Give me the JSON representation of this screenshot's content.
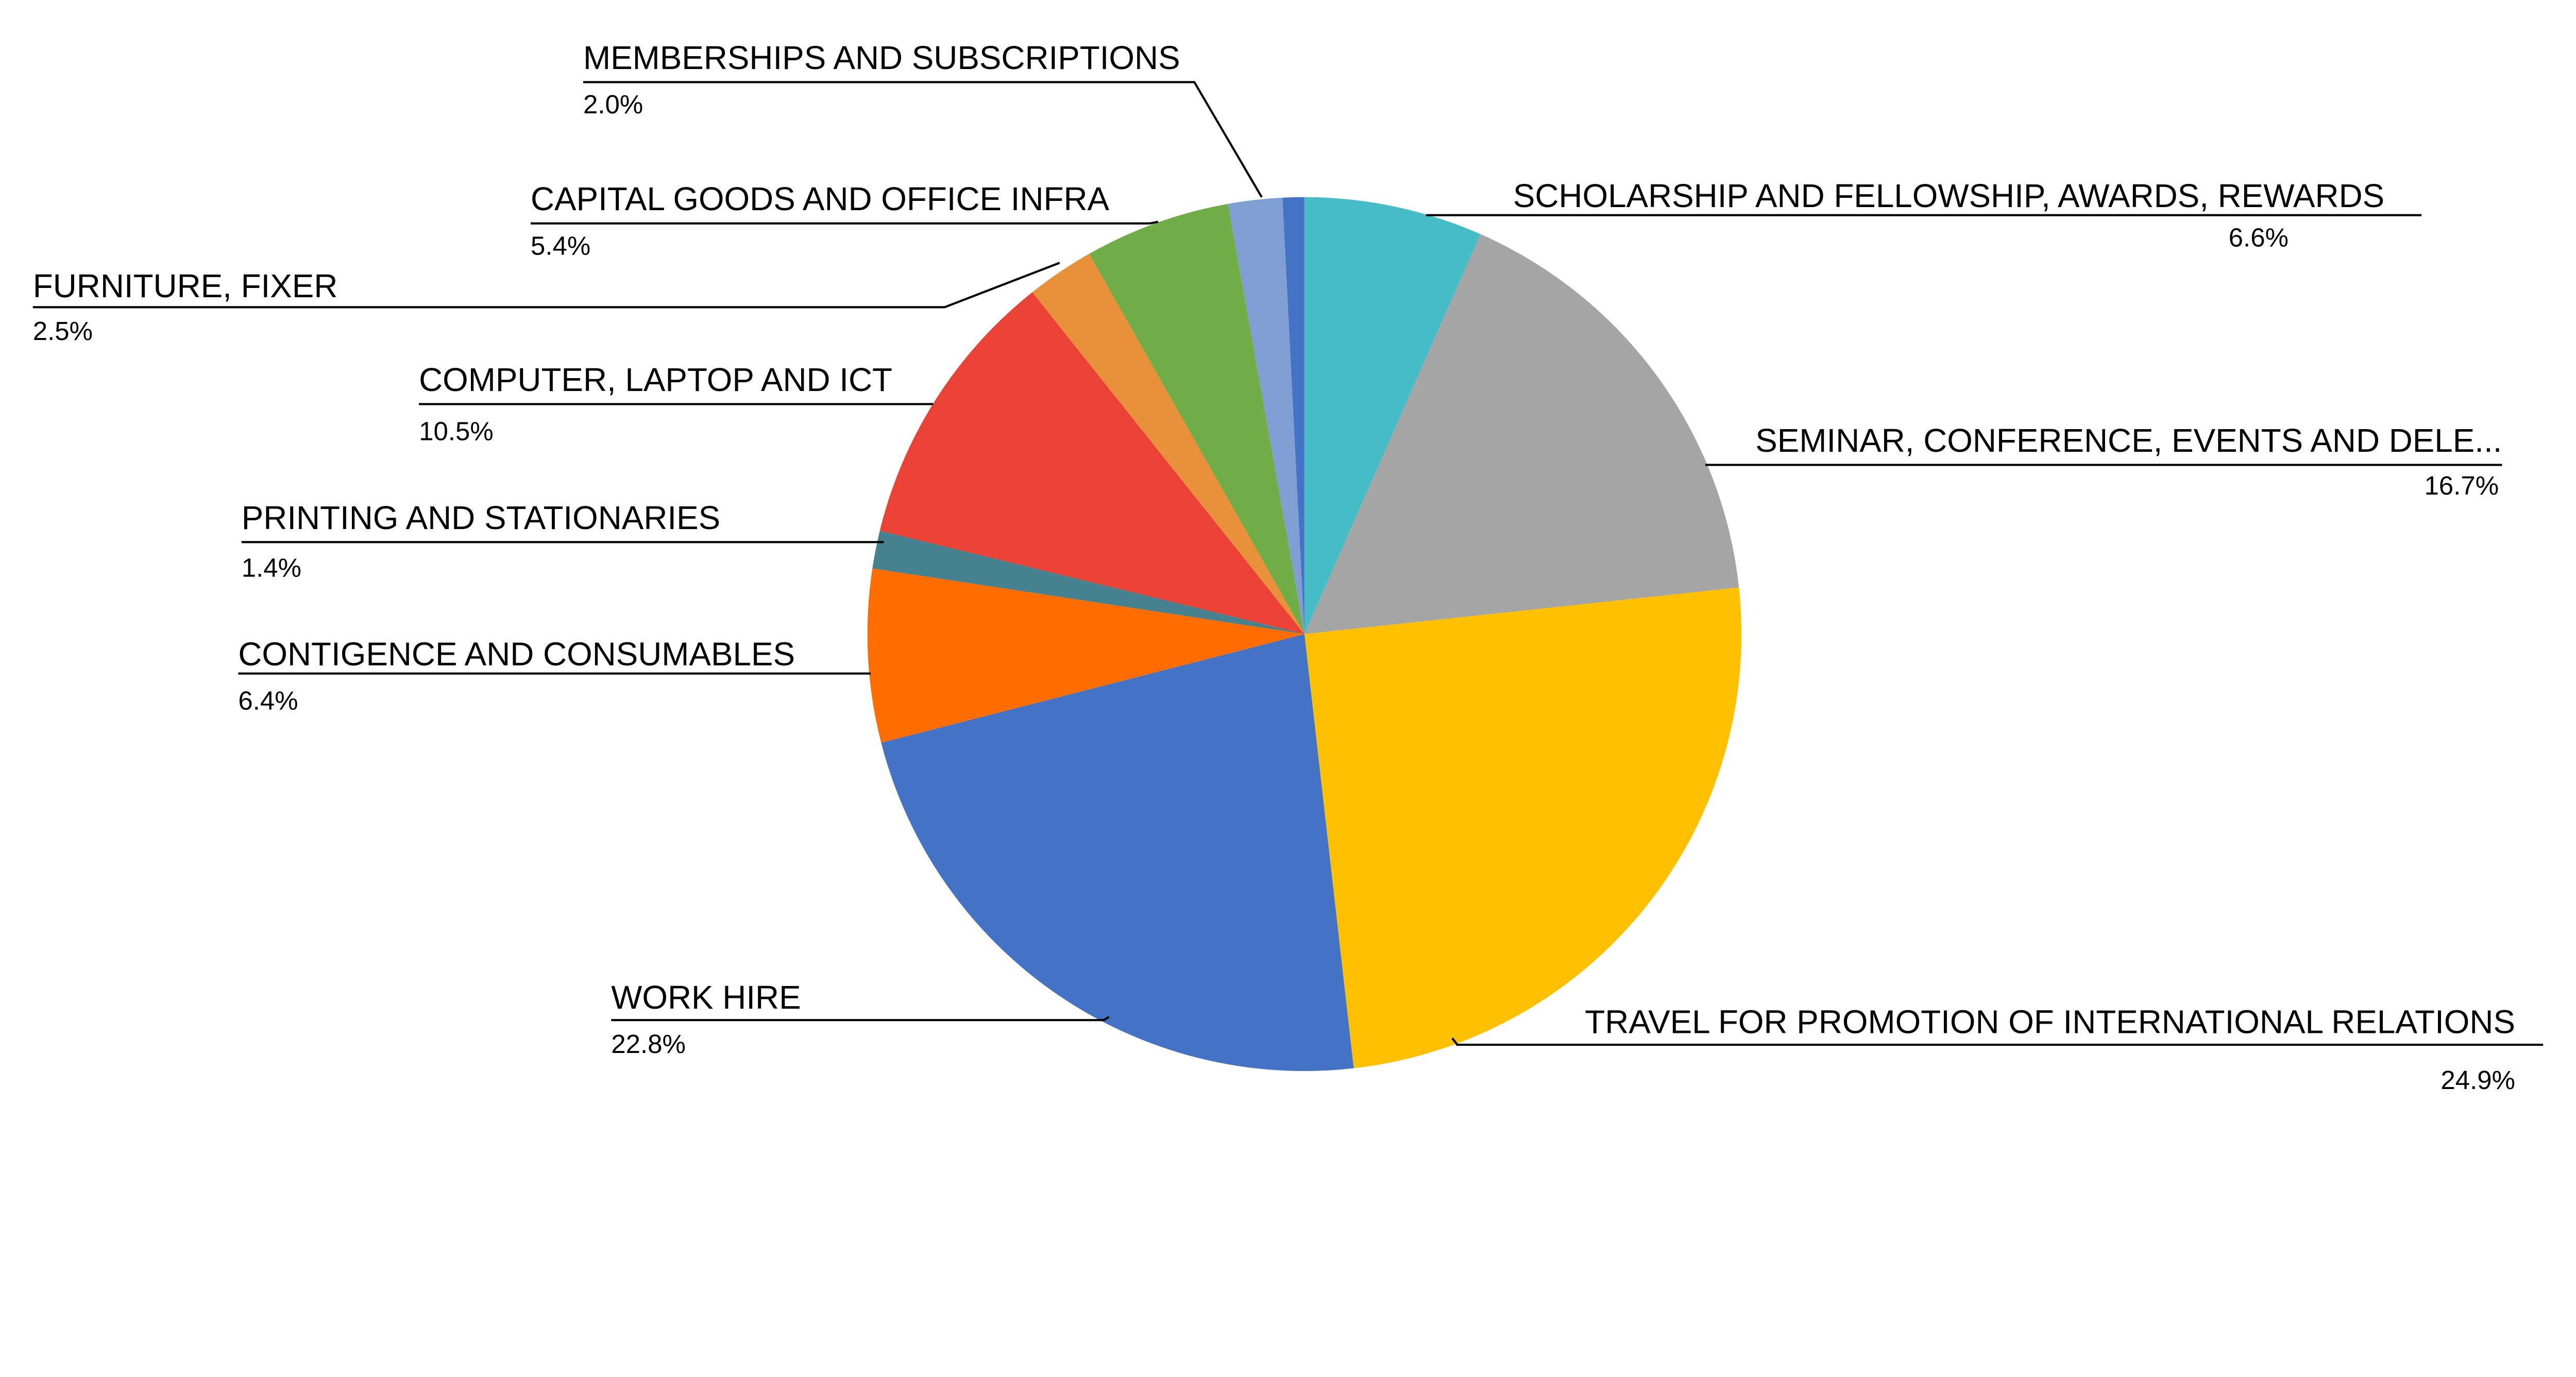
{
  "chart_data": {
    "type": "pie",
    "title": "",
    "start": "top",
    "direction": "clockwise",
    "slices": [
      {
        "label": "SCHOLARSHIP AND FELLOWSHIP, AWARDS, REWARDS",
        "value": 6.6,
        "pct_label": "6.6%",
        "color": "#46BDC6"
      },
      {
        "label": "SEMINAR, CONFERENCE, EVENTS AND DELE...",
        "value": 16.7,
        "pct_label": "16.7%",
        "color": "#A5A5A5"
      },
      {
        "label": "TRAVEL FOR PROMOTION OF INTERNATIONAL RELATIONS",
        "value": 24.9,
        "pct_label": "24.9%",
        "color": "#FFC000"
      },
      {
        "label": "WORK HIRE",
        "value": 22.8,
        "pct_label": "22.8%",
        "color": "#4472C4"
      },
      {
        "label": "CONTIGENCE AND CONSUMABLES",
        "value": 6.4,
        "pct_label": "6.4%",
        "color": "#FF6D01"
      },
      {
        "label": "PRINTING AND STATIONARIES",
        "value": 1.4,
        "pct_label": "1.4%",
        "color": "#45818E"
      },
      {
        "label": "COMPUTER, LAPTOP AND ICT",
        "value": 10.5,
        "pct_label": "10.5%",
        "color": "#EA4335"
      },
      {
        "label": "FURNITURE, FIXER",
        "value": 2.5,
        "pct_label": "2.5%",
        "color": "#E8903A"
      },
      {
        "label": "CAPITAL GOODS AND OFFICE INFRA",
        "value": 5.4,
        "pct_label": "5.4%",
        "color": "#70AD47"
      },
      {
        "label": "MEMBERSHIPS AND SUBSCRIPTIONS",
        "value": 2.0,
        "pct_label": "2.0%",
        "color": "#7F9FD4"
      },
      {
        "value": 0.8,
        "color": "#4472C4"
      }
    ]
  }
}
